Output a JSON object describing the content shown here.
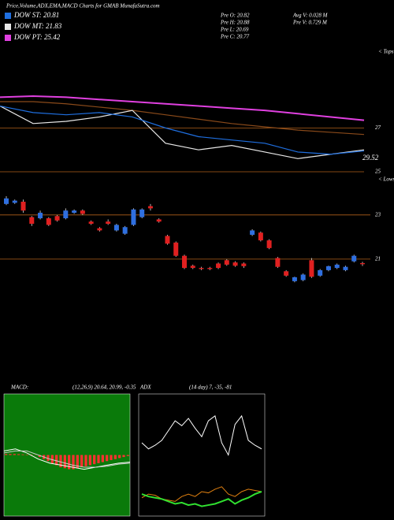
{
  "title": "Price,Volume,ADX,EMA,MACD Charts for GMAB MunafaSutra.com",
  "legend": [
    {
      "label": "DOW ST: 20.81",
      "color": "#1f6fe0"
    },
    {
      "label": "DOW MT: 21.83",
      "color": "#e8e8e8"
    },
    {
      "label": "DOW PT: 25.42",
      "color": "#e040e0"
    }
  ],
  "info": [
    "Pre  O: 20.82",
    "Pre  H: 20.88",
    "Pre  L: 20.69",
    "Pre  C: 20.77",
    "Avg V: 0.028  M",
    "Pre  V: 0.729 M"
  ],
  "chart_data": [
    {
      "type": "line",
      "ylim": [
        25,
        30.5
      ],
      "yticks": [
        25,
        27
      ],
      "marker": "< Tops",
      "last_label": "29.52",
      "grid_color": "#b0601a",
      "series": [
        {
          "color": "#e040e0",
          "values": [
            28.4,
            28.45,
            28.4,
            28.3,
            28.2,
            28.1,
            28.0,
            27.9,
            27.8,
            27.65,
            27.5,
            27.35
          ]
        },
        {
          "color": "#8a4a1a",
          "values": [
            28.2,
            28.2,
            28.1,
            27.95,
            27.8,
            27.6,
            27.4,
            27.2,
            27.05,
            26.9,
            26.8,
            26.7
          ]
        },
        {
          "color": "#e8e8e8",
          "values": [
            28.0,
            27.2,
            27.3,
            27.5,
            27.8,
            26.3,
            26.0,
            26.2,
            25.9,
            25.6,
            25.8,
            26.0
          ]
        },
        {
          "color": "#1f6fe0",
          "values": [
            28.0,
            27.7,
            27.6,
            27.7,
            27.5,
            27.0,
            26.6,
            26.45,
            26.3,
            25.9,
            25.8,
            25.95
          ]
        }
      ]
    },
    {
      "type": "candlestick",
      "ylim": [
        15.25,
        24.6
      ],
      "yticks": [
        21,
        23
      ],
      "marker": "< Lows",
      "grid_color": "#b0601a",
      "up_color": "#2f6fe0",
      "down_color": "#e02020",
      "open": [
        23.5,
        23.55,
        23.6,
        22.9,
        22.85,
        22.85,
        22.95,
        22.85,
        23.1,
        23.2,
        22.7,
        22.4,
        22.7,
        22.3,
        22.15,
        22.55,
        22.9,
        23.4,
        22.8,
        22.05,
        21.75,
        21.15,
        20.7,
        20.6,
        20.6,
        20.8,
        20.95,
        20.85,
        20.8,
        22.1,
        22.2,
        21.85,
        21.05,
        20.45,
        20.0,
        20.05,
        20.95,
        20.25,
        20.5,
        20.6,
        20.5,
        20.9,
        20.82
      ],
      "high": [
        23.85,
        23.7,
        23.7,
        22.95,
        23.2,
        22.9,
        23.0,
        23.3,
        23.25,
        23.25,
        22.75,
        22.45,
        22.8,
        22.6,
        22.5,
        23.3,
        23.3,
        23.5,
        22.85,
        22.1,
        21.8,
        21.2,
        20.75,
        20.65,
        20.65,
        20.85,
        21.0,
        20.9,
        20.85,
        22.35,
        22.25,
        21.9,
        21.1,
        20.5,
        20.2,
        20.35,
        21.05,
        20.55,
        20.7,
        20.8,
        20.7,
        21.2,
        20.88
      ],
      "low": [
        23.45,
        23.5,
        23.1,
        22.5,
        22.8,
        22.5,
        22.7,
        22.8,
        23.05,
        23.0,
        22.55,
        22.25,
        22.55,
        22.25,
        22.1,
        22.5,
        22.85,
        23.2,
        22.65,
        21.65,
        21.1,
        20.55,
        20.55,
        20.5,
        20.5,
        20.55,
        20.7,
        20.65,
        20.6,
        22.05,
        21.8,
        21.45,
        20.6,
        20.2,
        19.95,
        20.0,
        20.15,
        20.2,
        20.45,
        20.55,
        20.45,
        20.85,
        20.69
      ],
      "close": [
        23.75,
        23.65,
        23.2,
        22.6,
        23.1,
        22.55,
        22.75,
        23.2,
        23.2,
        23.05,
        22.6,
        22.3,
        22.6,
        22.55,
        22.45,
        23.25,
        23.25,
        23.3,
        22.7,
        21.7,
        21.15,
        20.6,
        20.6,
        20.55,
        20.55,
        20.6,
        20.75,
        20.7,
        20.68,
        22.3,
        21.85,
        21.5,
        20.65,
        20.25,
        20.18,
        20.3,
        20.2,
        20.5,
        20.68,
        20.75,
        20.65,
        21.15,
        20.77
      ]
    },
    {
      "type": "macd",
      "title": "MACD:",
      "subtitle": "(12,26,9) 20.64, 20.99, -0.35",
      "ylim": [
        -3,
        3
      ],
      "background": "#0a7a0a",
      "bar_color": "#ff3030",
      "lines": [
        {
          "color": "#ffffff",
          "values": [
            0.2,
            0.3,
            0.1,
            -0.2,
            -0.4,
            -0.5,
            -0.6,
            -0.7,
            -0.6,
            -0.5,
            -0.4,
            -0.35
          ]
        },
        {
          "color": "#cccccc",
          "values": [
            0.1,
            0.2,
            0.2,
            0.0,
            -0.2,
            -0.35,
            -0.5,
            -0.6,
            -0.6,
            -0.55,
            -0.45,
            -0.4
          ]
        }
      ],
      "histogram": [
        0.05,
        0.05,
        0.05,
        0.04,
        0.03,
        0.02,
        0.02,
        0.01,
        -0.1,
        -0.2,
        -0.3,
        -0.4,
        -0.5,
        -0.6,
        -0.65,
        -0.7,
        -0.7,
        -0.65,
        -0.6,
        -0.55,
        -0.5,
        -0.45,
        -0.4,
        -0.35,
        -0.3,
        -0.25,
        -0.2,
        -0.15,
        -0.1,
        -0.05
      ]
    },
    {
      "type": "adx",
      "title": "ADX",
      "subtitle": "(14  day) 7, -35, -81",
      "ylim": [
        0,
        100
      ],
      "background": "#000000",
      "lines": [
        {
          "color": "#ffffff",
          "values": [
            60,
            55,
            58,
            62,
            70,
            78,
            74,
            80,
            72,
            65,
            78,
            82,
            60,
            50,
            75,
            82,
            62,
            58,
            55
          ]
        },
        {
          "color": "#e08010",
          "values": [
            15,
            18,
            17,
            14,
            13,
            12,
            16,
            18,
            16,
            20,
            19,
            22,
            24,
            18,
            16,
            20,
            22,
            21,
            20
          ]
        },
        {
          "color": "#30e030",
          "values": [
            18,
            16,
            15,
            14,
            12,
            10,
            11,
            9,
            10,
            8,
            9,
            10,
            12,
            14,
            10,
            13,
            15,
            18,
            20
          ]
        }
      ]
    }
  ]
}
